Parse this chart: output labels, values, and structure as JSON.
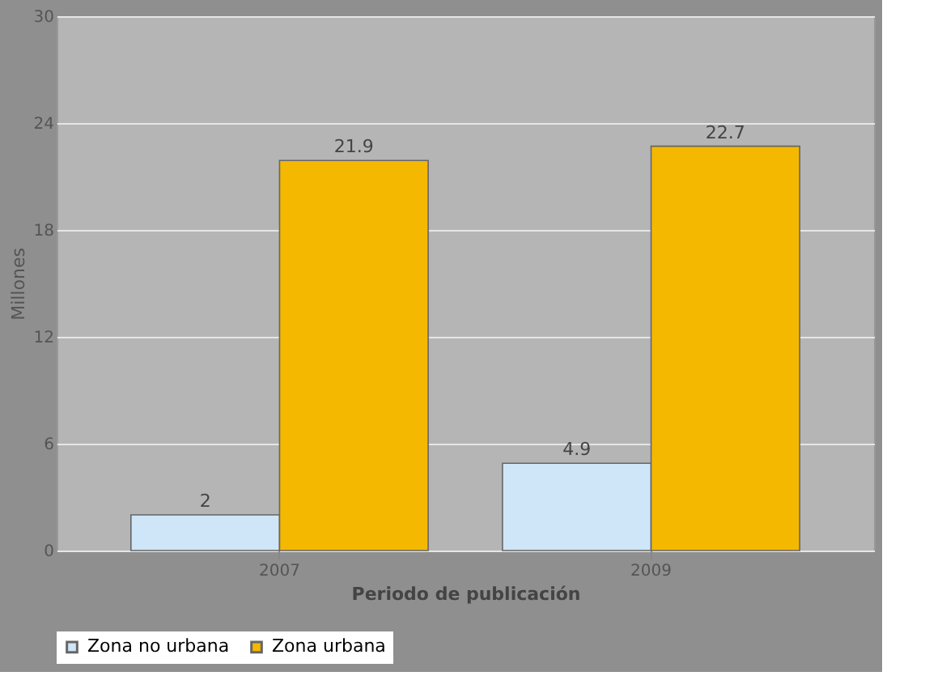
{
  "chart_data": {
    "type": "bar",
    "categories": [
      "2007",
      "2009"
    ],
    "series": [
      {
        "name": "Zona no urbana",
        "color": "#cfe6f8",
        "values": [
          2,
          4.9
        ]
      },
      {
        "name": "Zona urbana",
        "color": "#f5b800",
        "values": [
          21.9,
          22.7
        ]
      }
    ],
    "xlabel": "Periodo de publicación",
    "ylabel": "Millones",
    "ylim": [
      0,
      30
    ],
    "yticks": [
      0,
      6,
      12,
      18,
      24,
      30
    ],
    "grid": "y",
    "legend": "bottom",
    "data_labels": true
  }
}
